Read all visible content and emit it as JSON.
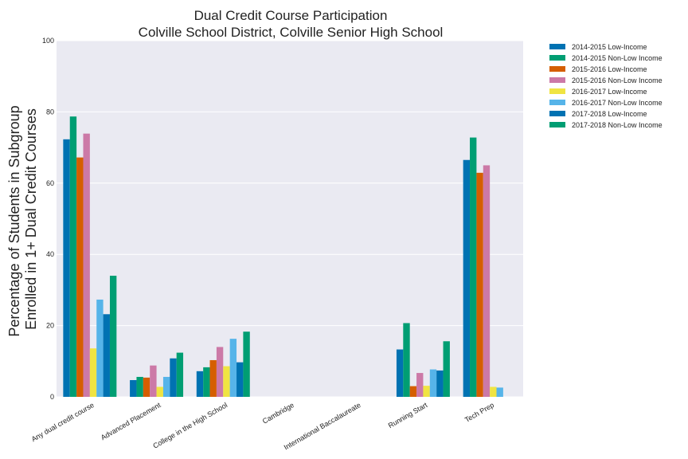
{
  "chart_data": {
    "type": "bar",
    "title": "Dual Credit Course Participation",
    "subtitle": "Colville School District, Colville Senior High School",
    "ylabel_lines": [
      "Percentage of Students in Subgroup",
      "Enrolled in 1+ Dual Credit Courses"
    ],
    "xlabel": "",
    "ylim": [
      0,
      100
    ],
    "yticks": [
      "0",
      "20",
      "40",
      "60",
      "80",
      "100"
    ],
    "grid": true,
    "legend_position": "outside-top-right",
    "categories": [
      "Any dual credit course",
      "Advanced Placement",
      "College in the High School",
      "Cambridge",
      "International Baccalaureate",
      "Running Start",
      "Tech Prep"
    ],
    "series": [
      {
        "name": "2014-2015 Low-Income",
        "color": "#0072b2",
        "values": [
          72.3,
          4.7,
          7.2,
          0,
          0,
          13.3,
          66.5
        ]
      },
      {
        "name": "2014-2015 Non-Low Income",
        "color": "#009e73",
        "values": [
          78.7,
          5.6,
          8.3,
          0,
          0,
          20.7,
          72.8
        ]
      },
      {
        "name": "2015-2016 Low-Income",
        "color": "#d55e00",
        "values": [
          67.2,
          5.4,
          10.3,
          0,
          0,
          3.0,
          62.9
        ]
      },
      {
        "name": "2015-2016 Non-Low Income",
        "color": "#cc79a7",
        "values": [
          73.9,
          8.8,
          14.0,
          0,
          0,
          6.7,
          65.0
        ]
      },
      {
        "name": "2016-2017 Low-Income",
        "color": "#f0e442",
        "values": [
          13.6,
          2.8,
          8.6,
          0,
          0,
          3.1,
          2.8
        ]
      },
      {
        "name": "2016-2017 Non-Low Income",
        "color": "#56b4e9",
        "values": [
          27.3,
          5.6,
          16.3,
          0,
          0,
          7.7,
          2.6
        ]
      },
      {
        "name": "2017-2018 Low-Income",
        "color": "#0072b2",
        "values": [
          23.2,
          10.8,
          9.7,
          0,
          0,
          7.4,
          0
        ]
      },
      {
        "name": "2017-2018 Non-Low Income",
        "color": "#009e73",
        "values": [
          34.0,
          12.4,
          18.3,
          0,
          0,
          15.6,
          0
        ]
      }
    ]
  }
}
